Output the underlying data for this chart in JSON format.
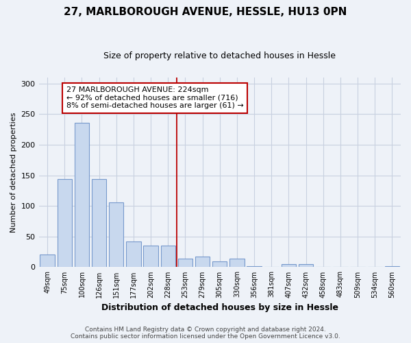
{
  "title": "27, MARLBOROUGH AVENUE, HESSLE, HU13 0PN",
  "subtitle": "Size of property relative to detached houses in Hessle",
  "xlabel": "Distribution of detached houses by size in Hessle",
  "ylabel": "Number of detached properties",
  "bar_labels": [
    "49sqm",
    "75sqm",
    "100sqm",
    "126sqm",
    "151sqm",
    "177sqm",
    "202sqm",
    "228sqm",
    "253sqm",
    "279sqm",
    "305sqm",
    "330sqm",
    "356sqm",
    "381sqm",
    "407sqm",
    "432sqm",
    "458sqm",
    "483sqm",
    "509sqm",
    "534sqm",
    "560sqm"
  ],
  "bar_values": [
    21,
    144,
    236,
    144,
    106,
    42,
    35,
    35,
    14,
    17,
    10,
    14,
    2,
    0,
    5,
    5,
    0,
    0,
    0,
    0,
    2
  ],
  "bar_color": "#c8d8ee",
  "bar_edge_color": "#7799cc",
  "highlight_index": 7,
  "highlight_color": "#bb0000",
  "annotation_line1": "27 MARLBOROUGH AVENUE: 224sqm",
  "annotation_line2": "← 92% of detached houses are smaller (716)",
  "annotation_line3": "8% of semi-detached houses are larger (61) →",
  "annotation_box_color": "#ffffff",
  "annotation_box_edge": "#bb0000",
  "ylim": [
    0,
    310
  ],
  "yticks": [
    0,
    50,
    100,
    150,
    200,
    250,
    300
  ],
  "footer_line1": "Contains HM Land Registry data © Crown copyright and database right 2024.",
  "footer_line2": "Contains public sector information licensed under the Open Government Licence v3.0.",
  "bg_color": "#eef2f8",
  "grid_color": "#c8d0e0",
  "bar_width": 0.85
}
